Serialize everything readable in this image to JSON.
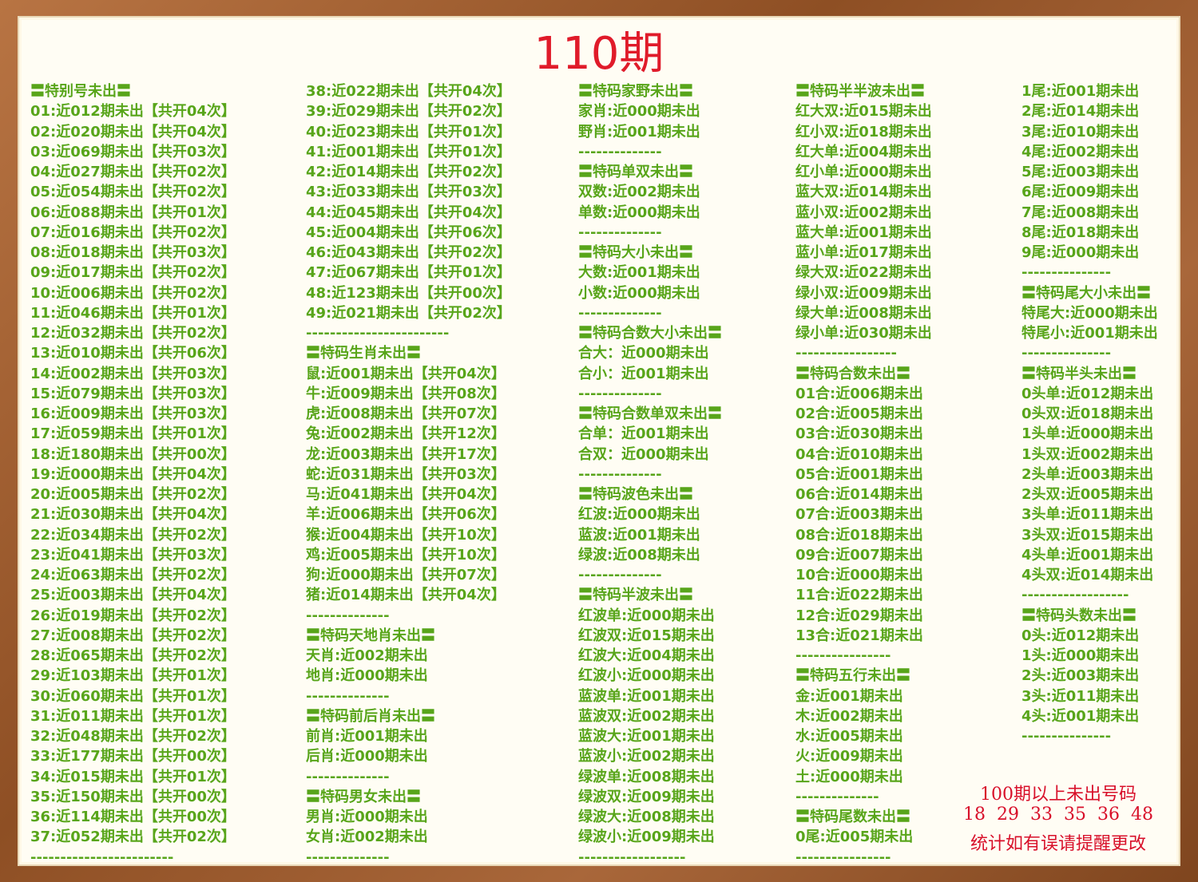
{
  "title": "110期",
  "columns": [
    [
      "〓特别号未出〓",
      "01:近012期未出【共开04次】",
      "02:近020期未出【共开04次】",
      "03:近069期未出【共开03次】",
      "04:近027期未出【共开02次】",
      "05:近054期未出【共开02次】",
      "06:近088期未出【共开01次】",
      "07:近016期未出【共开02次】",
      "08:近018期未出【共开03次】",
      "09:近017期未出【共开02次】",
      "10:近006期未出【共开02次】",
      "11:近046期未出【共开01次】",
      "12:近032期未出【共开02次】",
      "13:近010期未出【共开06次】",
      "14:近002期未出【共开03次】",
      "15:近079期未出【共开03次】",
      "16:近009期未出【共开03次】",
      "17:近059期未出【共开01次】",
      "18:近180期未出【共开00次】",
      "19:近000期未出【共开04次】",
      "20:近005期未出【共开02次】",
      "21:近030期未出【共开04次】",
      "22:近034期未出【共开02次】",
      "23:近041期未出【共开03次】",
      "24:近063期未出【共开02次】",
      "25:近003期未出【共开04次】",
      "26:近019期未出【共开02次】",
      "27:近008期未出【共开02次】",
      "28:近065期未出【共开02次】",
      "29:近103期未出【共开01次】",
      "30:近060期未出【共开01次】",
      "31:近011期未出【共开01次】",
      "32:近048期未出【共开02次】",
      "33:近177期未出【共开00次】",
      "34:近015期未出【共开01次】",
      "35:近150期未出【共开00次】",
      "36:近114期未出【共开00次】",
      "37:近052期未出【共开02次】",
      "------------------------"
    ],
    [
      "38:近022期未出【共开04次】",
      "39:近029期未出【共开02次】",
      "40:近023期未出【共开01次】",
      "41:近001期未出【共开01次】",
      "42:近014期未出【共开02次】",
      "43:近033期未出【共开03次】",
      "44:近045期未出【共开04次】",
      "45:近004期未出【共开06次】",
      "46:近043期未出【共开02次】",
      "47:近067期未出【共开01次】",
      "48:近123期未出【共开00次】",
      "49:近021期未出【共开02次】",
      "------------------------",
      "〓特码生肖未出〓",
      "鼠:近001期未出【共开04次】",
      "牛:近009期未出【共开08次】",
      "虎:近008期未出【共开07次】",
      "兔:近002期未出【共开12次】",
      "龙:近003期未出【共开17次】",
      "蛇:近031期未出【共开03次】",
      "马:近041期未出【共开04次】",
      "羊:近006期未出【共开06次】",
      "猴:近004期未出【共开10次】",
      "鸡:近005期未出【共开10次】",
      "狗:近000期未出【共开07次】",
      "猪:近014期未出【共开04次】",
      "--------------",
      "〓特码天地肖未出〓",
      "天肖:近002期未出",
      "地肖:近000期未出",
      "--------------",
      "〓特码前后肖未出〓",
      "前肖:近001期未出",
      "后肖:近000期未出",
      "--------------",
      "〓特码男女未出〓",
      "男肖:近000期未出",
      "女肖:近002期未出",
      "--------------"
    ],
    [
      "〓特码家野未出〓",
      "家肖:近000期未出",
      "野肖:近001期未出",
      "--------------",
      "〓特码单双未出〓",
      "双数:近002期未出",
      "单数:近000期未出",
      "--------------",
      "〓特码大小未出〓",
      "大数:近001期未出",
      "小数:近000期未出",
      "--------------",
      "〓特码合数大小未出〓",
      "合大：近000期未出",
      "合小：近001期未出",
      "--------------",
      "〓特码合数单双未出〓",
      "合单：近001期未出",
      "合双：近000期未出",
      "--------------",
      "〓特码波色未出〓",
      "红波:近000期未出",
      "蓝波:近001期未出",
      "绿波:近008期未出",
      "--------------",
      "〓特码半波未出〓",
      "红波单:近000期未出",
      "红波双:近015期未出",
      "红波大:近004期未出",
      "红波小:近000期未出",
      "蓝波单:近001期未出",
      "蓝波双:近002期未出",
      "蓝波大:近001期未出",
      "蓝波小:近002期未出",
      "绿波单:近008期未出",
      "绿波双:近009期未出",
      "绿波大:近008期未出",
      "绿波小:近009期未出",
      "------------------"
    ],
    [
      "〓特码半半波未出〓",
      "红大双:近015期未出",
      "红小双:近018期未出",
      "红大单:近004期未出",
      "红小单:近000期未出",
      "蓝大双:近014期未出",
      "蓝小双:近002期未出",
      "蓝大单:近001期未出",
      "蓝小单:近017期未出",
      "绿大双:近022期未出",
      "绿小双:近009期未出",
      "绿大单:近008期未出",
      "绿小单:近030期未出",
      "-----------------",
      "〓特码合数未出〓",
      "01合:近006期未出",
      "02合:近005期未出",
      "03合:近030期未出",
      "04合:近010期未出",
      "05合:近001期未出",
      "06合:近014期未出",
      "07合:近003期未出",
      "08合:近018期未出",
      "09合:近007期未出",
      "10合:近000期未出",
      "11合:近022期未出",
      "12合:近029期未出",
      "13合:近021期未出",
      "----------------",
      "〓特码五行未出〓",
      "金:近001期未出",
      "木:近002期未出",
      "水:近005期未出",
      "火:近009期未出",
      "土:近000期未出",
      "--------------",
      "〓特码尾数未出〓",
      "0尾:近005期未出",
      "----------------"
    ],
    [
      "1尾:近001期未出",
      "2尾:近014期未出",
      "3尾:近010期未出",
      "4尾:近002期未出",
      "5尾:近003期未出",
      "6尾:近009期未出",
      "7尾:近008期未出",
      "8尾:近018期未出",
      "9尾:近000期未出",
      "---------------",
      "〓特码尾大小未出〓",
      "特尾大:近000期未出",
      "特尾小:近001期未出",
      "---------------",
      "〓特码半头未出〓",
      "0头单:近012期未出",
      "0头双:近018期未出",
      "1头单:近000期未出",
      "1头双:近002期未出",
      "2头单:近003期未出",
      "2头双:近005期未出",
      "3头单:近011期未出",
      "3头双:近015期未出",
      "4头单:近001期未出",
      "4头双:近014期未出",
      "------------------",
      "〓特码头数未出〓",
      "0头:近012期未出",
      "1头:近000期未出",
      "2头:近003期未出",
      "3头:近011期未出",
      "4头:近001期未出",
      "---------------"
    ]
  ],
  "notes": [
    "100期以上未出号码",
    "18  29  33  35  36  48",
    "统计如有误请提醒更改"
  ]
}
